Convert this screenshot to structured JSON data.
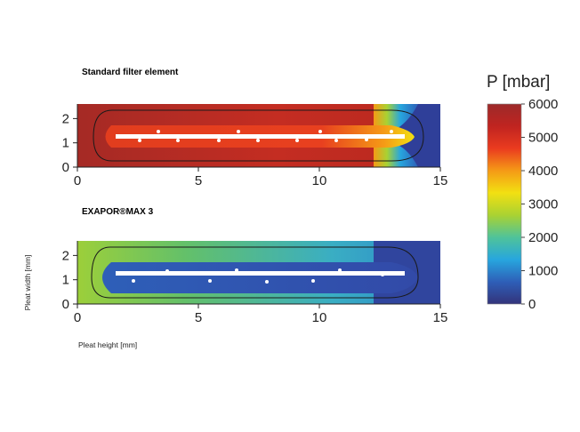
{
  "chart_data": {
    "type": "heatmap",
    "panels": [
      {
        "title": "Standard filter element",
        "x_ticks": [
          "0",
          "5",
          "10",
          "15"
        ],
        "y_ticks": [
          "0",
          "1",
          "2"
        ],
        "xlim": [
          0,
          15
        ],
        "ylim": [
          0,
          2.6
        ],
        "field": {
          "upstream_pressure_mbar": 5800,
          "pleat_interior_pressure_mbar": 5200,
          "pleat_interior_pressure_near_tip_mbar": 4000,
          "downstream_pressure_mbar": 700
        }
      },
      {
        "title": "EXAPOR®MAX 3",
        "x_ticks": [
          "0",
          "5",
          "10",
          "15"
        ],
        "y_ticks": [
          "0",
          "1",
          "2"
        ],
        "xlim": [
          0,
          15
        ],
        "ylim": [
          0,
          2.6
        ],
        "field": {
          "upstream_pressure_mbar": 3400,
          "pleat_interior_pressure_mbar": 1000,
          "downstream_pressure_mbar": 600
        }
      }
    ],
    "xlabel": "Pleat height [mm]",
    "ylabel": "Pleat width [mm]",
    "colorbar": {
      "title": "P [mbar]",
      "min": 0,
      "max": 6000,
      "ticks": [
        "0",
        "1000",
        "2000",
        "3000",
        "4000",
        "5000",
        "6000"
      ],
      "colors": [
        "#33337a",
        "#2e5fb8",
        "#27a6de",
        "#4fc39a",
        "#a9d232",
        "#f2e012",
        "#f59a16",
        "#ea3b1f",
        "#c02420",
        "#9c2a2a"
      ]
    }
  }
}
